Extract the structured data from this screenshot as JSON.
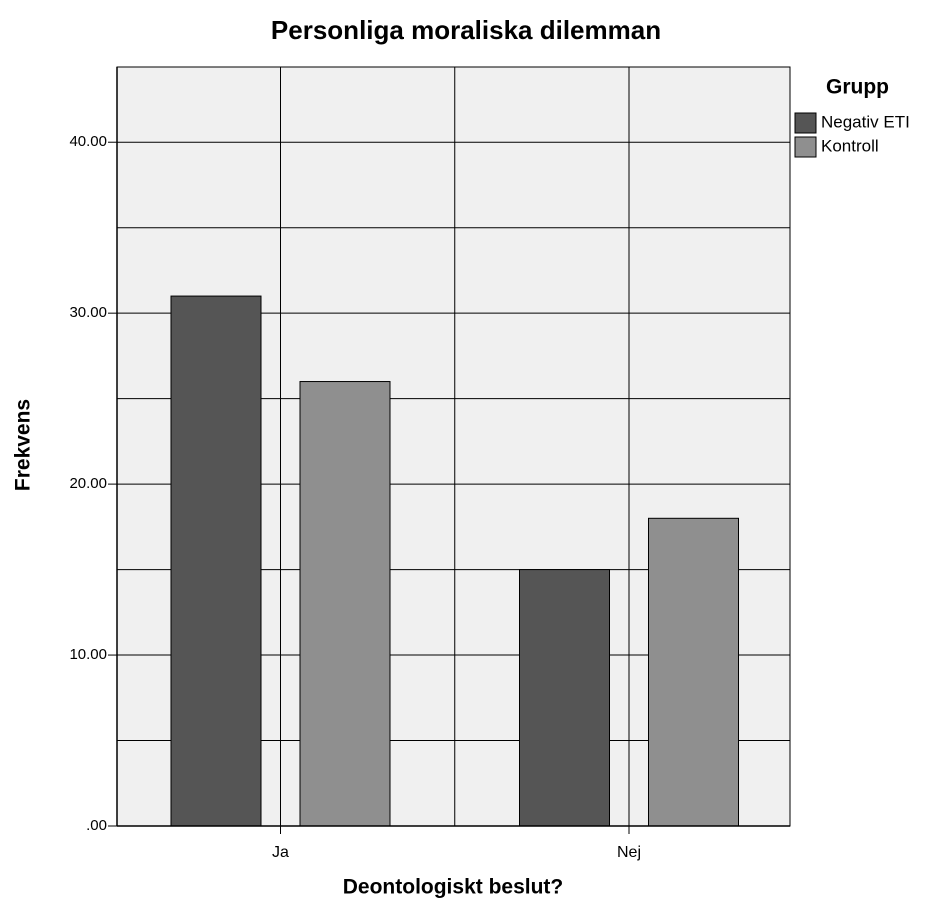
{
  "chart_data": {
    "type": "bar",
    "title": "Personliga moraliska dilemman",
    "x_label": "Deontologiskt beslut?",
    "y_label": "Frekvens",
    "legend_title": "Grupp",
    "legend_position": "right",
    "categories": [
      "Ja",
      "Nej"
    ],
    "series": [
      {
        "name": "Negativ ETI",
        "color": "#555555",
        "values": [
          31,
          15
        ]
      },
      {
        "name": "Kontroll",
        "color": "#8f8f8f",
        "values": [
          26,
          18
        ]
      }
    ],
    "ylim": [
      0,
      44.4
    ],
    "yticks": [
      {
        "value": 0,
        "label": ".00"
      },
      {
        "value": 10,
        "label": "10.00"
      },
      {
        "value": 20,
        "label": "20.00"
      },
      {
        "value": 30,
        "label": "30.00"
      },
      {
        "value": 40,
        "label": "40.00"
      }
    ],
    "grid": true
  }
}
